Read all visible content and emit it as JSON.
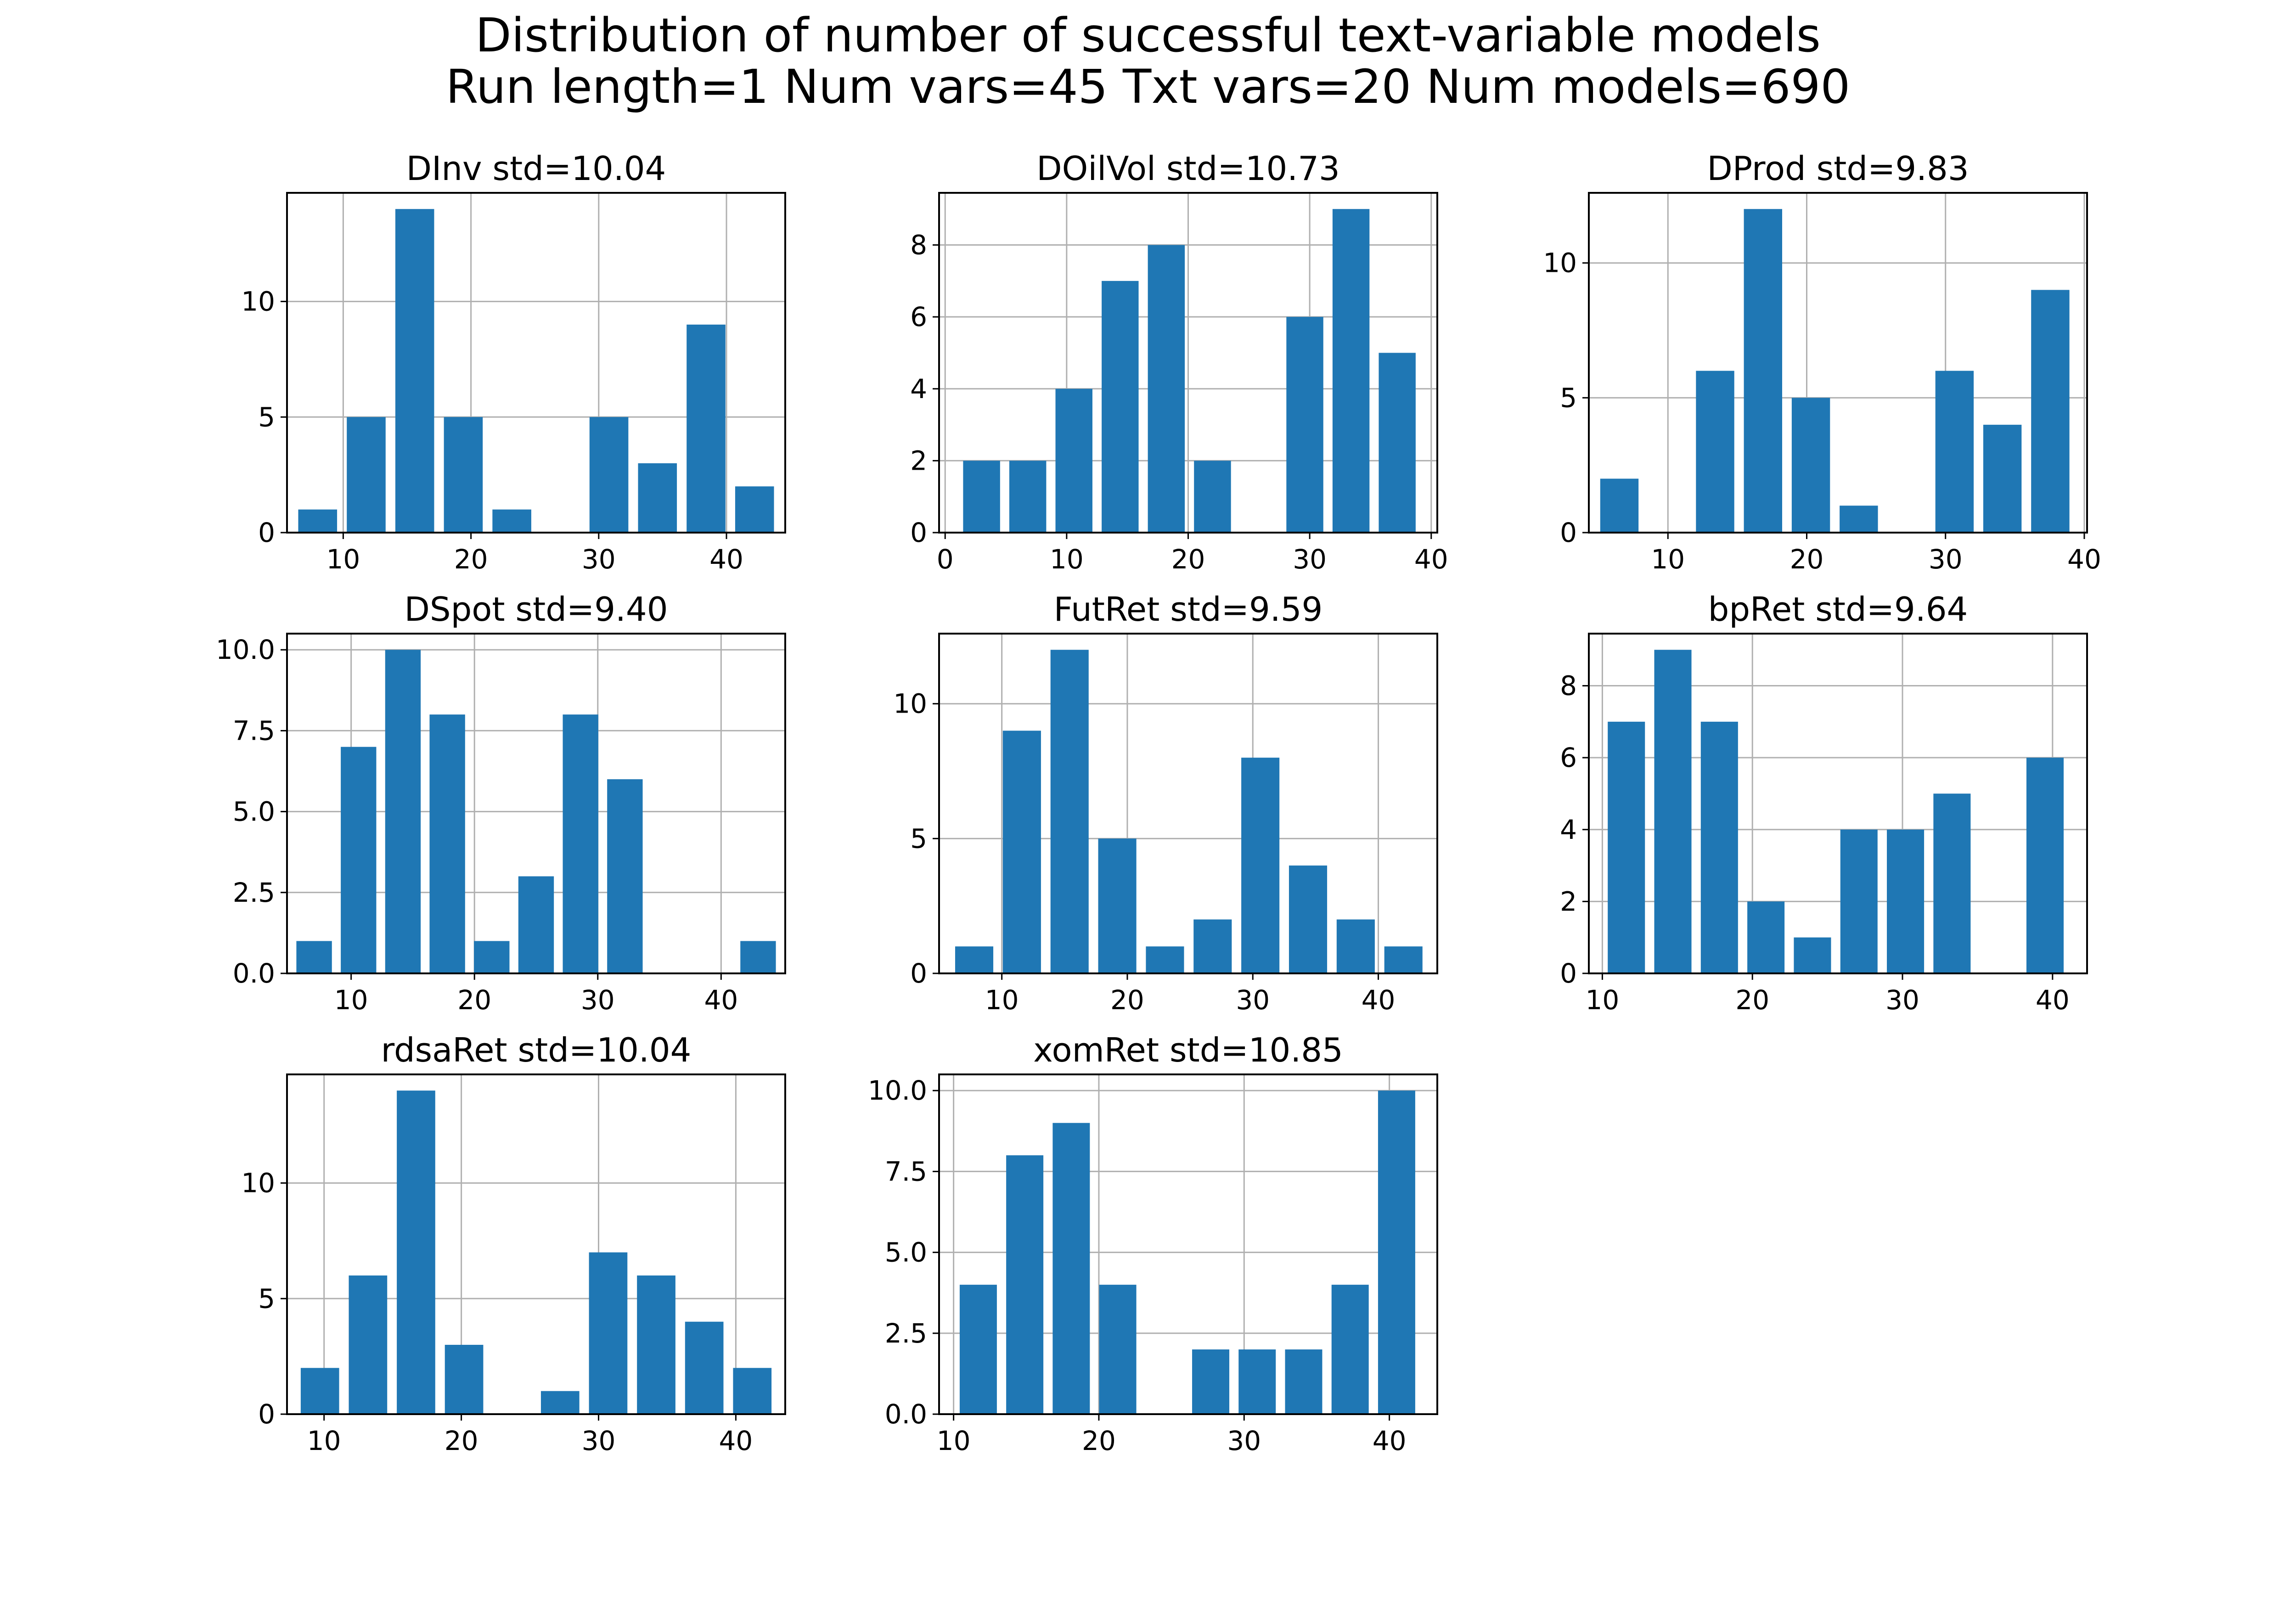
{
  "figure": {
    "title_line1": "Distribution of number of successful text-variable models",
    "title_line2": "Run length=1  Num vars=45  Txt vars=20  Num models=690"
  },
  "colors": {
    "bar": "#1f77b4",
    "grid": "#b0b0b0",
    "axes": "#000000"
  },
  "chart_data": [
    {
      "type": "bar",
      "title": "DInv  std=10.04",
      "x": [
        8,
        11.8,
        15.6,
        19.4,
        23.2,
        27,
        30.8,
        34.6,
        38.4,
        42.2
      ],
      "values": [
        1,
        5,
        14,
        5,
        1,
        0,
        5,
        3,
        9,
        2
      ],
      "xlim": [
        5.6,
        44.6
      ],
      "ylim": [
        0,
        14.7
      ],
      "xticks": [
        10,
        20,
        30,
        40
      ],
      "yticks": [
        0,
        5,
        10
      ],
      "grid": true
    },
    {
      "type": "bar",
      "title": "DOilVol  std=10.73",
      "x": [
        3,
        6.8,
        10.6,
        14.4,
        18.2,
        22,
        25.8,
        29.6,
        33.4,
        37.2
      ],
      "values": [
        2,
        2,
        4,
        7,
        8,
        2,
        0,
        6,
        9,
        5
      ],
      "xlim": [
        -0.5,
        40.5
      ],
      "ylim": [
        0,
        9.45
      ],
      "xticks": [
        0,
        10,
        20,
        30,
        40
      ],
      "yticks": [
        0,
        2,
        4,
        6,
        8
      ],
      "grid": true
    },
    {
      "type": "bar",
      "title": "DProd  std=9.83",
      "x": [
        6.5,
        9.95,
        13.4,
        16.85,
        20.3,
        23.75,
        27.2,
        30.65,
        34.1,
        37.55
      ],
      "values": [
        2,
        0,
        6,
        12,
        5,
        1,
        0,
        6,
        4,
        9
      ],
      "xlim": [
        4.3,
        40.2
      ],
      "ylim": [
        0,
        12.6
      ],
      "xticks": [
        10,
        20,
        30,
        40
      ],
      "yticks": [
        0,
        5,
        10
      ],
      "grid": true
    },
    {
      "type": "bar",
      "title": "DSpot  std=9.40",
      "x": [
        7,
        10.6,
        14.2,
        17.8,
        21.4,
        25,
        28.6,
        32.2,
        35.8,
        39.4,
        43
      ],
      "values": [
        1,
        7,
        10,
        8,
        1,
        3,
        8,
        6,
        0,
        0,
        1
      ],
      "xlim": [
        4.8,
        45.2
      ],
      "ylim": [
        0,
        10.5
      ],
      "xticks": [
        10,
        20,
        30,
        40
      ],
      "yticks": [
        0.0,
        2.5,
        5.0,
        7.5,
        10.0
      ],
      "grid": true
    },
    {
      "type": "bar",
      "title": "FutRet  std=9.59",
      "x": [
        7.8,
        11.6,
        15.4,
        19.2,
        23,
        26.8,
        30.6,
        34.4,
        38.2,
        42
      ],
      "values": [
        1,
        9,
        12,
        5,
        1,
        2,
        8,
        4,
        2,
        1
      ],
      "xlim": [
        5,
        44.7
      ],
      "ylim": [
        0,
        12.6
      ],
      "xticks": [
        10,
        20,
        30,
        40
      ],
      "yticks": [
        0,
        5,
        10
      ],
      "grid": true
    },
    {
      "type": "bar",
      "title": "bpRet  std=9.64",
      "x": [
        11.6,
        14.7,
        17.8,
        20.9,
        24,
        27.1,
        30.2,
        33.3,
        36.4,
        39.5
      ],
      "values": [
        7,
        9,
        7,
        2,
        1,
        4,
        4,
        5,
        0,
        6
      ],
      "xlim": [
        9.1,
        42.3
      ],
      "ylim": [
        0,
        9.45
      ],
      "xticks": [
        10,
        20,
        30,
        40
      ],
      "yticks": [
        0,
        2,
        4,
        6,
        8
      ],
      "grid": true
    },
    {
      "type": "bar",
      "title": "rdsaRet  std=10.04",
      "x": [
        9.7,
        13.2,
        16.7,
        20.2,
        23.7,
        27.2,
        30.7,
        34.2,
        37.7,
        41.2
      ],
      "values": [
        2,
        6,
        14,
        3,
        0,
        1,
        7,
        6,
        4,
        2
      ],
      "xlim": [
        7.3,
        43.6
      ],
      "ylim": [
        0,
        14.7
      ],
      "xticks": [
        10,
        20,
        30,
        40
      ],
      "yticks": [
        0,
        5,
        10
      ],
      "grid": true
    },
    {
      "type": "bar",
      "title": "xomRet  std=10.85",
      "x": [
        11.7,
        14.9,
        18.1,
        21.3,
        24.5,
        27.7,
        30.9,
        34.1,
        37.3,
        40.5
      ],
      "values": [
        4,
        8,
        9,
        4,
        0,
        2,
        2,
        2,
        4,
        10
      ],
      "xlim": [
        9,
        43.3
      ],
      "ylim": [
        0,
        10.5
      ],
      "xticks": [
        10,
        20,
        30,
        40
      ],
      "yticks": [
        0.0,
        2.5,
        5.0,
        7.5,
        10.0
      ],
      "grid": true
    }
  ]
}
